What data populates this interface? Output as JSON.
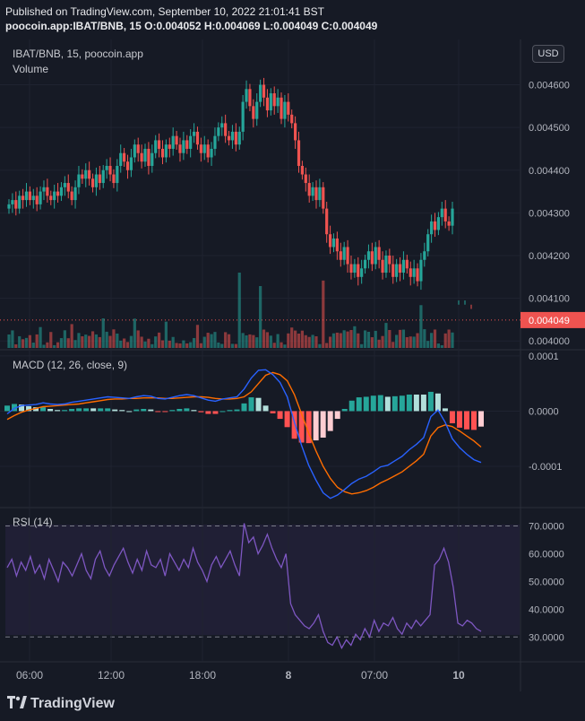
{
  "header": {
    "published": "Published on TradingView.com, September 10, 2022 21:01:41 BST",
    "ohlc": "poocoin.app:IBAT/BNB, 15  O:0.004052  H:0.004069  L:0.004049  C:0.004049"
  },
  "price_panel": {
    "symbol_label": "IBAT/BNB, 15, poocoin.app",
    "volume_label": "Volume",
    "currency_button": "USD",
    "last_price_label": "0.004049",
    "last_price": 0.004049
  },
  "macd_panel": {
    "label": "MACD (12, 26, close, 9)"
  },
  "rsi_panel": {
    "label": "RSI (14)"
  },
  "footer": {
    "brand": "TradingView"
  },
  "colors": {
    "up": "#26a69a",
    "down": "#ef5350",
    "macd": "#2962ff",
    "signal": "#ff6d00",
    "rsi": "#7e57c2",
    "hist_up_strong": "#26a69a",
    "hist_up_weak": "#b2dfdb",
    "hist_down_strong": "#ff5252",
    "hist_down_weak": "#ffcdd2"
  },
  "chart_data": [
    {
      "type": "candlestick",
      "title": "IBAT/BNB, 15, poocoin.app",
      "y_ticks": [
        "0.004600",
        "0.004500",
        "0.004400",
        "0.004300",
        "0.004200",
        "0.004100",
        "0.004000"
      ],
      "ylim": [
        0.00399,
        0.00462
      ],
      "x_ticks": [
        "06:00",
        "12:00",
        "18:00",
        "8",
        "07:00",
        "10"
      ],
      "close": [
        0.00432,
        0.00433,
        0.00431,
        0.00434,
        0.00433,
        0.00435,
        0.00433,
        0.00434,
        0.00432,
        0.00435,
        0.00436,
        0.00434,
        0.00433,
        0.00435,
        0.00434,
        0.00436,
        0.00437,
        0.00435,
        0.00433,
        0.00436,
        0.00439,
        0.00438,
        0.0044,
        0.00438,
        0.00436,
        0.00439,
        0.00437,
        0.0044,
        0.00441,
        0.00439,
        0.00437,
        0.00441,
        0.00444,
        0.00442,
        0.0044,
        0.00443,
        0.00446,
        0.00444,
        0.00442,
        0.00445,
        0.00441,
        0.00444,
        0.00447,
        0.00445,
        0.00443,
        0.00446,
        0.00445,
        0.00448,
        0.00446,
        0.00444,
        0.00447,
        0.00445,
        0.00448,
        0.00449,
        0.00446,
        0.00444,
        0.00446,
        0.00443,
        0.00445,
        0.00448,
        0.0045,
        0.00451,
        0.00448,
        0.00447,
        0.00449,
        0.00446,
        0.00449,
        0.00456,
        0.00459,
        0.00455,
        0.00452,
        0.00456,
        0.0046,
        0.00457,
        0.00454,
        0.00458,
        0.00455,
        0.00457,
        0.00452,
        0.00456,
        0.00453,
        0.00451,
        0.00447,
        0.00441,
        0.00439,
        0.00437,
        0.00434,
        0.00436,
        0.00433,
        0.00436,
        0.00431,
        0.00425,
        0.00422,
        0.00424,
        0.00421,
        0.00419,
        0.00422,
        0.00418,
        0.00416,
        0.00418,
        0.00415,
        0.00417,
        0.00419,
        0.00421,
        0.00418,
        0.00422,
        0.00419,
        0.00416,
        0.0042,
        0.00418,
        0.00415,
        0.00418,
        0.00416,
        0.00419,
        0.00417,
        0.00415,
        0.00417,
        0.00414,
        0.00419,
        0.00421,
        0.00425,
        0.00428,
        0.00426,
        0.00429,
        0.00431,
        0.00428,
        0.00427,
        0.00431
      ],
      "volume_ticks_note": "volume histogram at bottom of price pane",
      "volume_bars": [
        {
          "index": 66,
          "value": 0.00095,
          "dir": "up"
        },
        {
          "index": 72,
          "value": 0.00078,
          "dir": "down"
        },
        {
          "index": 90,
          "value": 0.00085,
          "dir": "down"
        },
        {
          "index": 118,
          "value": 0.00054,
          "dir": "up"
        }
      ]
    },
    {
      "type": "line+bar",
      "title": "MACD (12, 26, close, 9)",
      "y_ticks": [
        "0.0001",
        "0.0000",
        "-0.0001"
      ],
      "ylim": [
        -0.000165,
        0.000108
      ],
      "series": [
        {
          "name": "MACD",
          "values": [
            -5e-06,
            5e-06,
            1e-05,
            1.1e-05,
            1.2e-05,
            1.5e-05,
            1.3e-05,
            1.2e-05,
            1.3e-05,
            1.6e-05,
            1.8e-05,
            2e-05,
            2.2e-05,
            2.4e-05,
            2.6e-05,
            2.5e-05,
            2.4e-05,
            2.3e-05,
            2.6e-05,
            2.8e-05,
            2.7e-05,
            2.3e-05,
            2.2e-05,
            2.5e-05,
            2.8e-05,
            3e-05,
            2.8e-05,
            2.4e-05,
            2e-05,
            1.8e-05,
            2.2e-05,
            2.4e-05,
            2.6e-05,
            4e-05,
            6e-05,
            7.4e-05,
            7.5e-05,
            6.6e-05,
            5.2e-05,
            2.6e-05,
            -2e-05,
            -6.2e-05,
            -9.8e-05,
            -0.000125,
            -0.000148,
            -0.000158,
            -0.000152,
            -0.000142,
            -0.000131,
            -0.000123,
            -0.000118,
            -0.00011,
            -0.000101,
            -9.8e-05,
            -9e-05,
            -8.2e-05,
            -7e-05,
            -6e-05,
            -4.8e-05,
            -1e-05,
            2e-06,
            -2e-05,
            -5e-05,
            -6.6e-05,
            -7.8e-05,
            -8.8e-05,
            -9.3e-05
          ]
        },
        {
          "name": "Signal",
          "values": [
            -1.5e-05,
            -8e-06,
            -2e-06,
            2e-06,
            5e-06,
            8e-06,
            9e-06,
            1e-05,
            1.1e-05,
            1.2e-05,
            1.3e-05,
            1.5e-05,
            1.7e-05,
            1.9e-05,
            2.1e-05,
            2.2e-05,
            2.2e-05,
            2.3e-05,
            2.3e-05,
            2.4e-05,
            2.4e-05,
            2.4e-05,
            2.3e-05,
            2.3e-05,
            2.4e-05,
            2.5e-05,
            2.6e-05,
            2.6e-05,
            2.5e-05,
            2.3e-05,
            2.2e-05,
            2.2e-05,
            2.3e-05,
            2.6e-05,
            3.5e-05,
            5e-05,
            6.5e-05,
            7e-05,
            6.6e-05,
            5.5e-05,
            3e-05,
            -5e-06,
            -4e-05,
            -7.2e-05,
            -0.0001,
            -0.000122,
            -0.000138,
            -0.000146,
            -0.00015,
            -0.000148,
            -0.000144,
            -0.000138,
            -0.00013,
            -0.000124,
            -0.000117,
            -0.00011,
            -0.0001,
            -9e-05,
            -7.8e-05,
            -4.5e-05,
            -3e-05,
            -2.5e-05,
            -2.8e-05,
            -3.6e-05,
            -4.5e-05,
            -5.4e-05,
            -6.5e-05
          ]
        }
      ]
    },
    {
      "type": "line",
      "title": "RSI (14)",
      "y_ticks": [
        "70.0000",
        "60.0000",
        "50.0000",
        "40.0000",
        "30.0000"
      ],
      "ylim": [
        22,
        76
      ],
      "upper_band": 70,
      "lower_band": 30,
      "series": [
        {
          "name": "RSI",
          "values": [
            55,
            58,
            52,
            57,
            54,
            59,
            53,
            56,
            51,
            58,
            54,
            50,
            57,
            55,
            52,
            56,
            60,
            54,
            51,
            58,
            61,
            55,
            52,
            56,
            59,
            62,
            57,
            53,
            58,
            54,
            61,
            56,
            55,
            58,
            52,
            60,
            57,
            54,
            58,
            55,
            62,
            57,
            54,
            50,
            56,
            59,
            55,
            58,
            61,
            56,
            52,
            71,
            64,
            66,
            60,
            63,
            67,
            62,
            58,
            55,
            60,
            42,
            38,
            36,
            34,
            33,
            35,
            38,
            32,
            28,
            27,
            30,
            26,
            29,
            27,
            31,
            29,
            33,
            30,
            36,
            32,
            35,
            34,
            37,
            33,
            31,
            35,
            33,
            36,
            34,
            36,
            38,
            56,
            58,
            62,
            57,
            48,
            35,
            34,
            36,
            35,
            33,
            32
          ]
        }
      ]
    }
  ]
}
